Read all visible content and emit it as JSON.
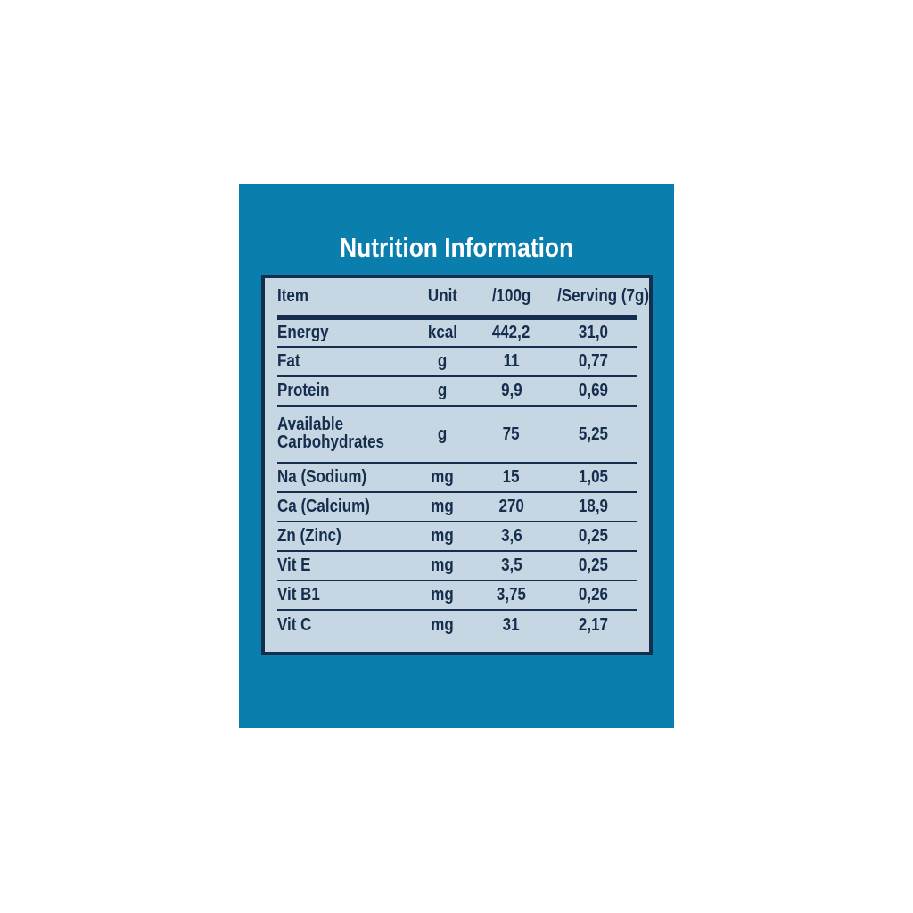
{
  "panel": {
    "title": "Nutrition Information",
    "background_color": "#0a7fae",
    "title_color": "#ffffff"
  },
  "table": {
    "background_color": "#c7d6e3",
    "border_color": "#152e4d",
    "text_color": "#152e4d",
    "headers": [
      "Item",
      "Unit",
      "/100g",
      "/Serving (7g)"
    ],
    "rows": [
      {
        "item": "Energy",
        "unit": "kcal",
        "per100g": "442,2",
        "perServing": "31,0"
      },
      {
        "item": "Fat",
        "unit": "g",
        "per100g": "11",
        "perServing": "0,77"
      },
      {
        "item": "Protein",
        "unit": "g",
        "per100g": "9,9",
        "perServing": "0,69"
      },
      {
        "item": "Available Carbohydrates",
        "unit": "g",
        "per100g": "75",
        "perServing": "5,25"
      },
      {
        "item": "Na (Sodium)",
        "unit": "mg",
        "per100g": "15",
        "perServing": "1,05"
      },
      {
        "item": "Ca (Calcium)",
        "unit": "mg",
        "per100g": "270",
        "perServing": "18,9"
      },
      {
        "item": "Zn (Zinc)",
        "unit": "mg",
        "per100g": "3,6",
        "perServing": "0,25"
      },
      {
        "item": "Vit E",
        "unit": "mg",
        "per100g": "3,5",
        "perServing": "0,25"
      },
      {
        "item": "Vit B1",
        "unit": "mg",
        "per100g": "3,75",
        "perServing": "0,26"
      },
      {
        "item": "Vit C",
        "unit": "mg",
        "per100g": "31",
        "perServing": "2,17"
      }
    ]
  }
}
